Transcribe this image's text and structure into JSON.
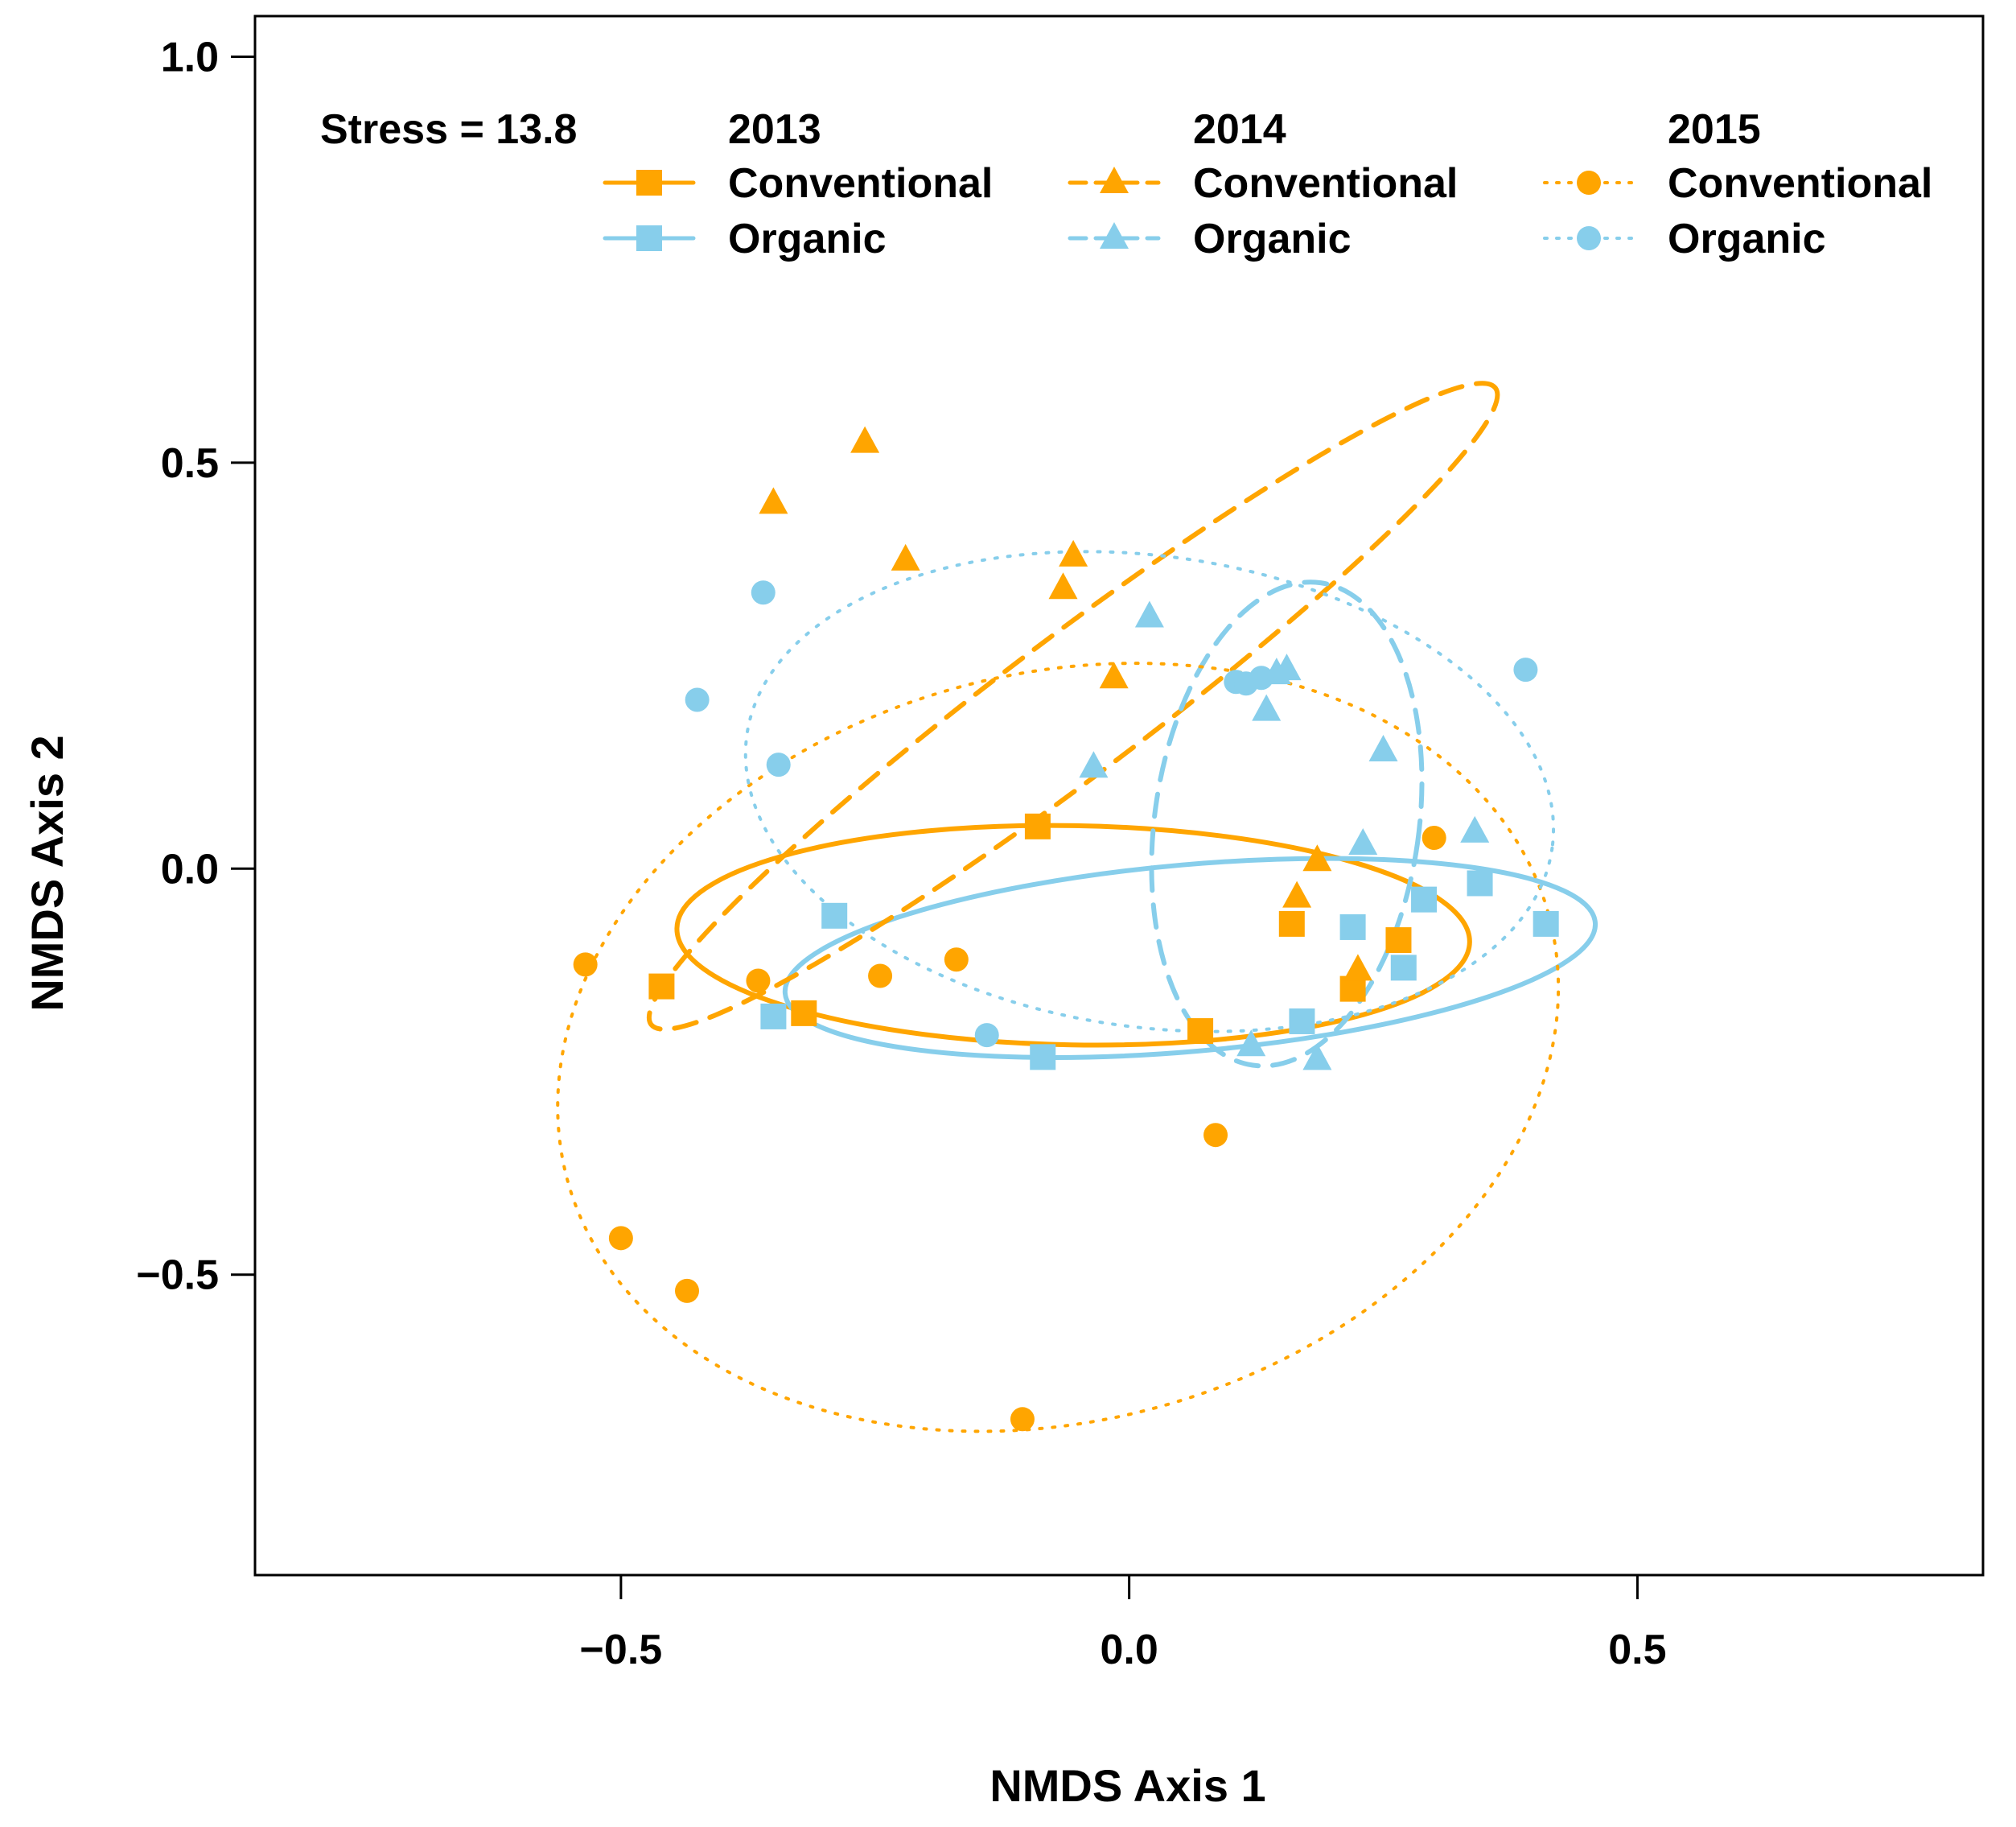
{
  "chart_data": {
    "type": "scatter",
    "title": "",
    "xlabel": "NMDS Axis 1",
    "ylabel": "NMDS Axis 2",
    "xlim": [
      -0.86,
      0.84
    ],
    "ylim": [
      -0.87,
      1.05
    ],
    "xticks": [
      -0.5,
      0.0,
      0.5
    ],
    "yticks": [
      -0.5,
      0.0,
      0.5,
      1.0
    ],
    "xtick_labels": [
      "−0.5",
      "0.0",
      "0.5"
    ],
    "ytick_labels": [
      "−0.5",
      "0.0",
      "0.5",
      "1.0"
    ],
    "grid": false,
    "legend_position": "top",
    "annotation": "Stress = 13.8",
    "colors": {
      "conventional": "#FFA500",
      "organic": "#87CEEB"
    },
    "series": [
      {
        "name": "2013 Conventional",
        "year": "2013",
        "label": "Conventional",
        "marker": "square",
        "line": "solid",
        "color": "#FFA500",
        "points": [
          [
            -0.46,
            -0.145
          ],
          [
            -0.32,
            -0.178
          ],
          [
            -0.09,
            0.052
          ],
          [
            0.07,
            -0.2
          ],
          [
            0.16,
            -0.068
          ],
          [
            0.22,
            -0.148
          ],
          [
            0.265,
            -0.088
          ]
        ],
        "ellipse": {
          "cx": -0.055,
          "cy": -0.082,
          "rx": 0.39,
          "ry": 0.135,
          "angle": -1
        }
      },
      {
        "name": "2013 Organic",
        "year": "2013",
        "label": "Organic",
        "marker": "square",
        "line": "solid",
        "color": "#87CEEB",
        "points": [
          [
            -0.35,
            -0.182
          ],
          [
            -0.29,
            -0.058
          ],
          [
            -0.085,
            -0.232
          ],
          [
            0.17,
            -0.188
          ],
          [
            0.22,
            -0.072
          ],
          [
            0.27,
            -0.122
          ],
          [
            0.29,
            -0.038
          ],
          [
            0.345,
            -0.018
          ],
          [
            0.41,
            -0.068
          ]
        ],
        "ellipse": {
          "cx": 0.06,
          "cy": -0.11,
          "rx": 0.4,
          "ry": 0.115,
          "angle": 5
        }
      },
      {
        "name": "2014 Conventional",
        "year": "2014",
        "label": "Conventional",
        "marker": "triangle",
        "line": "dashed",
        "color": "#FFA500",
        "points": [
          [
            -0.35,
            0.45
          ],
          [
            -0.26,
            0.525
          ],
          [
            -0.22,
            0.38
          ],
          [
            -0.065,
            0.345
          ],
          [
            -0.055,
            0.385
          ],
          [
            -0.015,
            0.235
          ],
          [
            0.165,
            -0.035
          ],
          [
            0.185,
            0.01
          ],
          [
            0.225,
            -0.125
          ]
        ],
        "ellipse": {
          "cx": -0.055,
          "cy": 0.2,
          "rx": 0.52,
          "ry": 0.085,
          "angle": 37
        }
      },
      {
        "name": "2014 Organic",
        "year": "2014",
        "label": "Organic",
        "marker": "triangle",
        "line": "dashed",
        "color": "#87CEEB",
        "points": [
          [
            -0.035,
            0.125
          ],
          [
            0.02,
            0.31
          ],
          [
            0.12,
            -0.218
          ],
          [
            0.135,
            0.195
          ],
          [
            0.145,
            0.24
          ],
          [
            0.155,
            0.245
          ],
          [
            0.185,
            -0.235
          ],
          [
            0.23,
            0.03
          ],
          [
            0.25,
            0.145
          ],
          [
            0.34,
            0.045
          ]
        ],
        "ellipse": {
          "cx": 0.155,
          "cy": 0.055,
          "rx": 0.13,
          "ry": 0.3,
          "angle": -8
        }
      },
      {
        "name": "2015 Conventional",
        "year": "2015",
        "label": "Conventional",
        "marker": "circle",
        "line": "dotted",
        "color": "#FFA500",
        "points": [
          [
            -0.535,
            -0.118
          ],
          [
            -0.5,
            -0.455
          ],
          [
            -0.435,
            -0.52
          ],
          [
            -0.365,
            -0.138
          ],
          [
            -0.245,
            -0.132
          ],
          [
            -0.17,
            -0.112
          ],
          [
            -0.105,
            -0.678
          ],
          [
            0.085,
            -0.328
          ],
          [
            0.3,
            0.038
          ]
        ],
        "ellipse": {
          "cx": -0.07,
          "cy": -0.22,
          "rx": 0.5,
          "ry": 0.46,
          "angle": 15
        }
      },
      {
        "name": "2015 Organic",
        "year": "2015",
        "label": "Organic",
        "marker": "circle",
        "line": "dotted",
        "color": "#87CEEB",
        "points": [
          [
            -0.425,
            0.208
          ],
          [
            -0.36,
            0.34
          ],
          [
            -0.345,
            0.128
          ],
          [
            -0.14,
            -0.205
          ],
          [
            0.105,
            0.23
          ],
          [
            0.115,
            0.228
          ],
          [
            0.13,
            0.235
          ],
          [
            0.39,
            0.245
          ]
        ],
        "ellipse": {
          "cx": 0.02,
          "cy": 0.095,
          "rx": 0.4,
          "ry": 0.29,
          "angle": -8
        }
      }
    ]
  }
}
